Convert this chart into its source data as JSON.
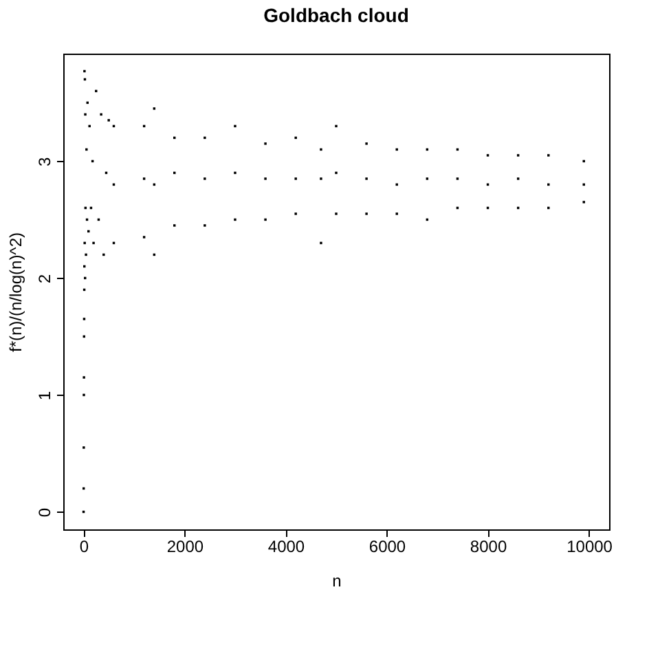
{
  "chart_data": {
    "type": "scatter",
    "title": "Goldbach cloud",
    "xlabel": "n",
    "ylabel": "f*(n)/(n/log(n)^2)",
    "x": [
      2,
      4,
      6,
      8,
      10,
      12,
      14,
      16,
      18,
      20,
      24,
      28,
      32,
      36,
      40,
      50,
      60,
      70,
      80,
      100,
      120,
      150,
      180,
      200,
      250,
      300,
      350,
      400,
      450,
      500,
      600,
      600,
      600,
      1200,
      1200,
      1200,
      1400,
      1400,
      1400,
      1800,
      1800,
      1800,
      2400,
      2400,
      2400,
      3000,
      3000,
      3000,
      3600,
      3600,
      3600,
      4200,
      4200,
      4200,
      4700,
      4700,
      4700,
      5000,
      5000,
      5000,
      5600,
      5600,
      5600,
      6200,
      6200,
      6200,
      6800,
      6800,
      6800,
      7400,
      7400,
      7400,
      8000,
      8000,
      8000,
      8600,
      8600,
      8600,
      9200,
      9200,
      9200,
      9900,
      9900,
      9900
    ],
    "values": [
      0.0,
      0.2,
      0.55,
      1.0,
      1.15,
      1.5,
      1.65,
      1.9,
      2.1,
      3.77,
      2.3,
      3.7,
      2.0,
      3.4,
      2.6,
      2.2,
      3.1,
      2.5,
      3.5,
      2.4,
      3.3,
      2.6,
      3.0,
      2.3,
      3.6,
      2.5,
      3.4,
      2.2,
      2.9,
      3.35,
      3.3,
      2.8,
      2.3,
      3.3,
      2.85,
      2.35,
      3.45,
      2.8,
      2.2,
      3.2,
      2.9,
      2.45,
      3.2,
      2.85,
      2.45,
      3.3,
      2.9,
      2.5,
      3.15,
      2.85,
      2.5,
      3.2,
      2.85,
      2.55,
      3.1,
      2.85,
      2.3,
      3.3,
      2.9,
      2.55,
      3.15,
      2.85,
      2.55,
      3.1,
      2.8,
      2.55,
      3.1,
      2.85,
      2.5,
      3.1,
      2.85,
      2.6,
      3.05,
      2.8,
      2.6,
      3.05,
      2.85,
      2.6,
      3.05,
      2.8,
      2.6,
      3.0,
      2.8,
      2.65
    ],
    "color": "#000000",
    "marker": "square",
    "xlim": [
      -400,
      10400
    ],
    "ylim": [
      -0.15,
      3.92
    ],
    "xticks": [
      0,
      2000,
      4000,
      6000,
      8000,
      10000
    ],
    "yticks": [
      0,
      1,
      2,
      3
    ],
    "grid": false
  }
}
